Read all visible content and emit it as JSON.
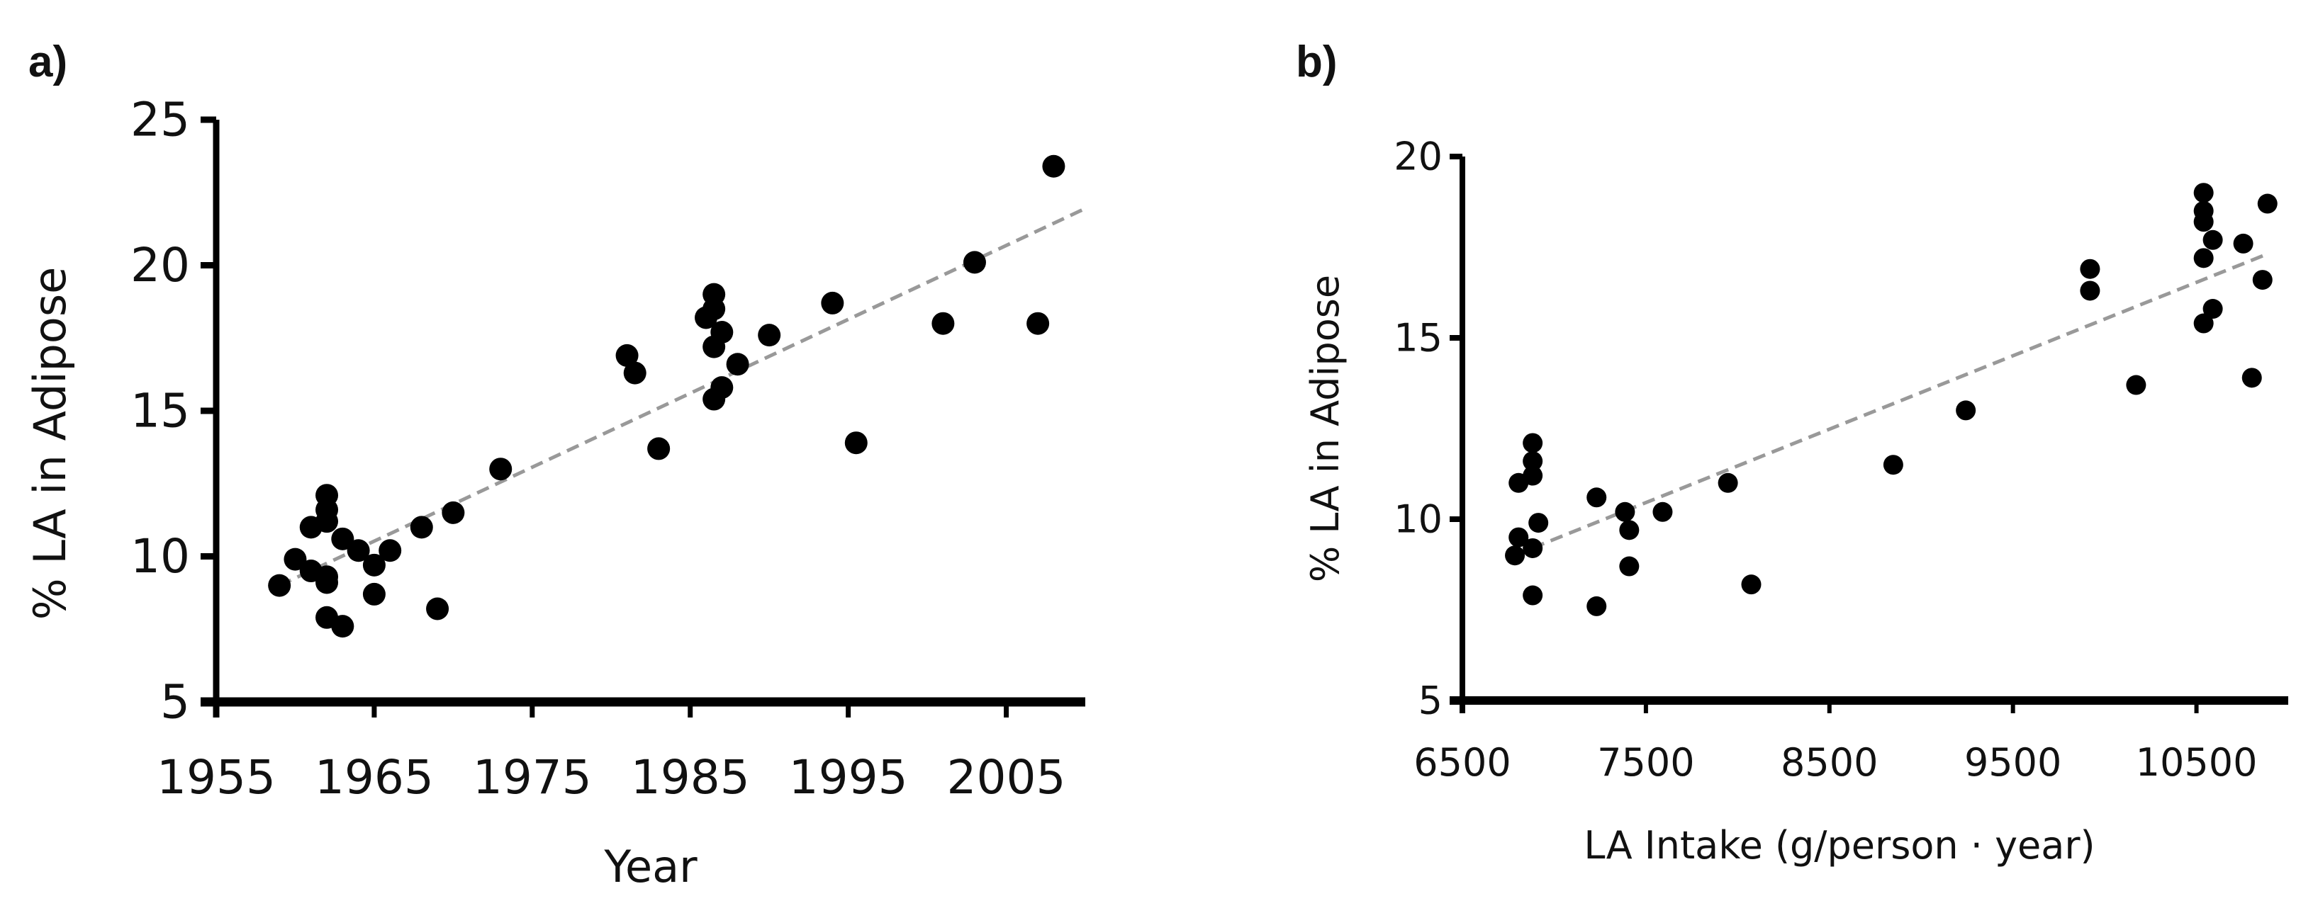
{
  "figure": {
    "panels": [
      {
        "label": "a)"
      },
      {
        "label": "b)"
      }
    ]
  },
  "style": {
    "point_color": "#000000",
    "axis_color": "#000000",
    "trendline_color": "#999999"
  },
  "chart_data": [
    {
      "type": "scatter",
      "panel_label": "a)",
      "title": "",
      "xlabel": "Year",
      "ylabel": "% LA in Adipose",
      "xlim": [
        1955,
        2010
      ],
      "ylim": [
        5,
        25
      ],
      "xticks": [
        1955,
        1965,
        1975,
        1985,
        1995,
        2005
      ],
      "yticks": [
        5,
        10,
        15,
        20,
        25
      ],
      "grid": false,
      "legend": null,
      "trendline": {
        "style": "dashed",
        "x": [
          1959,
          2010
        ],
        "y": [
          9.0,
          21.95
        ]
      },
      "points": [
        {
          "x": 1959.0,
          "y": 9.0
        },
        {
          "x": 1960.0,
          "y": 9.9
        },
        {
          "x": 1961.0,
          "y": 11.0
        },
        {
          "x": 1961.0,
          "y": 9.5
        },
        {
          "x": 1962.0,
          "y": 12.1
        },
        {
          "x": 1962.0,
          "y": 11.6
        },
        {
          "x": 1962.0,
          "y": 11.2
        },
        {
          "x": 1962.0,
          "y": 9.3
        },
        {
          "x": 1962.0,
          "y": 9.1
        },
        {
          "x": 1962.0,
          "y": 7.9
        },
        {
          "x": 1963.0,
          "y": 10.6
        },
        {
          "x": 1963.0,
          "y": 7.6
        },
        {
          "x": 1964.0,
          "y": 10.2
        },
        {
          "x": 1965.0,
          "y": 9.7
        },
        {
          "x": 1965.0,
          "y": 8.7
        },
        {
          "x": 1966.0,
          "y": 10.2
        },
        {
          "x": 1968.0,
          "y": 11.0
        },
        {
          "x": 1969.0,
          "y": 8.2
        },
        {
          "x": 1970.0,
          "y": 11.5
        },
        {
          "x": 1973.0,
          "y": 13.0
        },
        {
          "x": 1981.0,
          "y": 16.9
        },
        {
          "x": 1981.5,
          "y": 16.3
        },
        {
          "x": 1983.0,
          "y": 13.7
        },
        {
          "x": 1986.0,
          "y": 18.2
        },
        {
          "x": 1986.5,
          "y": 19.0
        },
        {
          "x": 1986.5,
          "y": 18.5
        },
        {
          "x": 1986.5,
          "y": 17.2
        },
        {
          "x": 1986.5,
          "y": 15.4
        },
        {
          "x": 1987.0,
          "y": 17.7
        },
        {
          "x": 1987.0,
          "y": 15.8
        },
        {
          "x": 1988.0,
          "y": 16.6
        },
        {
          "x": 1990.0,
          "y": 17.6
        },
        {
          "x": 1994.0,
          "y": 18.7
        },
        {
          "x": 1995.5,
          "y": 13.9
        },
        {
          "x": 2001.0,
          "y": 18.0
        },
        {
          "x": 2003.0,
          "y": 20.1
        },
        {
          "x": 2007.0,
          "y": 18.0
        },
        {
          "x": 2008.0,
          "y": 23.4
        }
      ]
    },
    {
      "type": "scatter",
      "panel_label": "b)",
      "title": "",
      "xlabel": "LA Intake (g/person · year)",
      "ylabel": "% LA in Adipose",
      "xlim": [
        6500,
        11000
      ],
      "ylim": [
        5,
        20
      ],
      "xticks": [
        6500,
        7500,
        8500,
        9500,
        10500
      ],
      "yticks": [
        5,
        10,
        15,
        20
      ],
      "grid": false,
      "legend": null,
      "trendline": {
        "style": "dashed",
        "x": [
          6780,
          10880
        ],
        "y": [
          9.0,
          17.3
        ]
      },
      "points": [
        {
          "x": 6786,
          "y": 9.0
        },
        {
          "x": 6806,
          "y": 9.5
        },
        {
          "x": 6806,
          "y": 11.0
        },
        {
          "x": 6883,
          "y": 12.1
        },
        {
          "x": 6883,
          "y": 11.6
        },
        {
          "x": 6883,
          "y": 11.2
        },
        {
          "x": 6883,
          "y": 9.2
        },
        {
          "x": 6883,
          "y": 7.9
        },
        {
          "x": 6914,
          "y": 9.9
        },
        {
          "x": 7231,
          "y": 10.6
        },
        {
          "x": 7231,
          "y": 7.6
        },
        {
          "x": 7386,
          "y": 10.2
        },
        {
          "x": 7409,
          "y": 9.7
        },
        {
          "x": 7409,
          "y": 8.7
        },
        {
          "x": 7591,
          "y": 10.2
        },
        {
          "x": 7947,
          "y": 11.0
        },
        {
          "x": 8074,
          "y": 8.2
        },
        {
          "x": 8848,
          "y": 11.5
        },
        {
          "x": 9243,
          "y": 13.0
        },
        {
          "x": 9920,
          "y": 16.9
        },
        {
          "x": 9920,
          "y": 16.3
        },
        {
          "x": 10171,
          "y": 13.7
        },
        {
          "x": 10539,
          "y": 19.0
        },
        {
          "x": 10539,
          "y": 18.5
        },
        {
          "x": 10539,
          "y": 18.2
        },
        {
          "x": 10539,
          "y": 17.2
        },
        {
          "x": 10539,
          "y": 15.4
        },
        {
          "x": 10589,
          "y": 17.7
        },
        {
          "x": 10589,
          "y": 15.8
        },
        {
          "x": 10755,
          "y": 17.6
        },
        {
          "x": 10802,
          "y": 13.9
        },
        {
          "x": 10860,
          "y": 16.6
        },
        {
          "x": 10887,
          "y": 18.7
        }
      ]
    }
  ]
}
